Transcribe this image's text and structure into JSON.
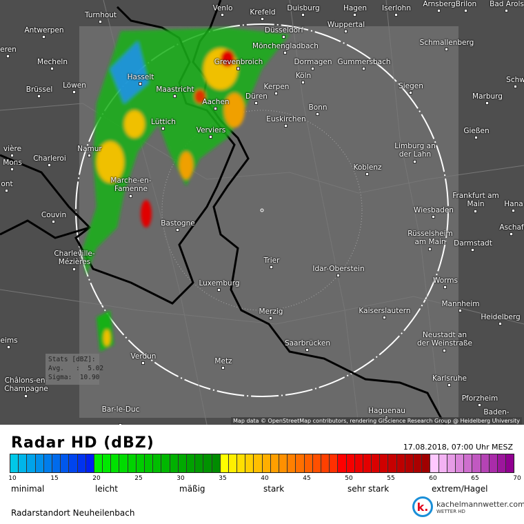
{
  "map": {
    "cities": [
      {
        "name": "Venlo"
      },
      {
        "name": "Krefeld"
      },
      {
        "name": "Duisburg"
      },
      {
        "name": "Hagen"
      },
      {
        "name": "Iserlohn"
      },
      {
        "name": "Arnsberg"
      },
      {
        "name": "Brilon"
      },
      {
        "name": "Bad Arols"
      },
      {
        "name": "Turnhout"
      },
      {
        "name": "Antwerpen"
      },
      {
        "name": "Düsseldorf"
      },
      {
        "name": "Wuppertal"
      },
      {
        "name": "Mönchengladbach"
      },
      {
        "name": "Schmallenberg"
      },
      {
        "name": "eren"
      },
      {
        "name": "Mecheln"
      },
      {
        "name": "Grevenbroich"
      },
      {
        "name": "Dormagen"
      },
      {
        "name": "Gummersbach"
      },
      {
        "name": "Hasselt"
      },
      {
        "name": "Köln"
      },
      {
        "name": "Schw"
      },
      {
        "name": "Brüssel"
      },
      {
        "name": "Löwen"
      },
      {
        "name": "Maastricht"
      },
      {
        "name": "Kerpen"
      },
      {
        "name": "Siegen"
      },
      {
        "name": "Marburg"
      },
      {
        "name": "Aachen"
      },
      {
        "name": "Düren"
      },
      {
        "name": "Bonn"
      },
      {
        "name": "Lüttich"
      },
      {
        "name": "Verviers"
      },
      {
        "name": "Euskirchen"
      },
      {
        "name": "Gießen"
      },
      {
        "name": "Namur"
      },
      {
        "name": "vière"
      },
      {
        "name": "Charleroi"
      },
      {
        "name": "Mons"
      },
      {
        "name": "Limburg an der Lahn"
      },
      {
        "name": "Koblenz"
      },
      {
        "name": "Marche-en-Famenne"
      },
      {
        "name": "ont"
      },
      {
        "name": "Frankfurt am Main"
      },
      {
        "name": "Hana"
      },
      {
        "name": "Wiesbaden"
      },
      {
        "name": "Couvin"
      },
      {
        "name": "Bastogne"
      },
      {
        "name": "Aschaf"
      },
      {
        "name": "Rüsselsheim am Main"
      },
      {
        "name": "Darmstadt"
      },
      {
        "name": "Charleville-Mézières"
      },
      {
        "name": "Trier"
      },
      {
        "name": "Idar-Oberstein"
      },
      {
        "name": "Luxemburg"
      },
      {
        "name": "Worms"
      },
      {
        "name": "Mannheim"
      },
      {
        "name": "Merzig"
      },
      {
        "name": "Kaiserslautern"
      },
      {
        "name": "Heidelberg"
      },
      {
        "name": "eims"
      },
      {
        "name": "Neustadt an der Weinstraße"
      },
      {
        "name": "Saarbrücken"
      },
      {
        "name": "Verdun"
      },
      {
        "name": "Metz"
      },
      {
        "name": "Châlons-en-Champagne"
      },
      {
        "name": "Karlsruhe"
      },
      {
        "name": "Pforzheim"
      },
      {
        "name": "Bar-le-Duc"
      },
      {
        "name": "Haguenau"
      },
      {
        "name": "Baden-"
      }
    ],
    "attribution": "Map data © OpenStreetMap contributors, rendering GIScience Research Group @ Heidelberg University",
    "stats": {
      "title": "Stats [dBZ]:",
      "avg_label": "Avg.   :",
      "avg": "5.02",
      "sigma_label": "Sigma:",
      "sigma": "10.90"
    }
  },
  "legend": {
    "title": "Radar HD (dBZ)",
    "timestamp": "17.08.2018, 07:00 Uhr MESZ",
    "range": [
      10,
      70
    ],
    "ticks": [
      "10",
      "15",
      "20",
      "25",
      "30",
      "35",
      "40",
      "45",
      "50",
      "55",
      "60",
      "65",
      "70"
    ],
    "categories": [
      "minimal",
      "leicht",
      "mäßig",
      "stark",
      "sehr stark",
      "extrem/Hagel"
    ],
    "color_stops": [
      {
        "dbz": 10,
        "color": "#00c8e8"
      },
      {
        "dbz": 19,
        "color": "#0020f0"
      },
      {
        "dbz": 20,
        "color": "#00f000"
      },
      {
        "dbz": 34,
        "color": "#008c00"
      },
      {
        "dbz": 35,
        "color": "#ffff00"
      },
      {
        "dbz": 48,
        "color": "#ff3000"
      },
      {
        "dbz": 49,
        "color": "#ff0000"
      },
      {
        "dbz": 59,
        "color": "#a00000"
      },
      {
        "dbz": 60,
        "color": "#ffc8ff"
      },
      {
        "dbz": 69,
        "color": "#900090"
      }
    ],
    "site": "Radarstandort Neuheilenbach",
    "logo": {
      "name": "kachelmannwetter.com",
      "sub": "WETTER HD",
      "mark": "k."
    }
  }
}
